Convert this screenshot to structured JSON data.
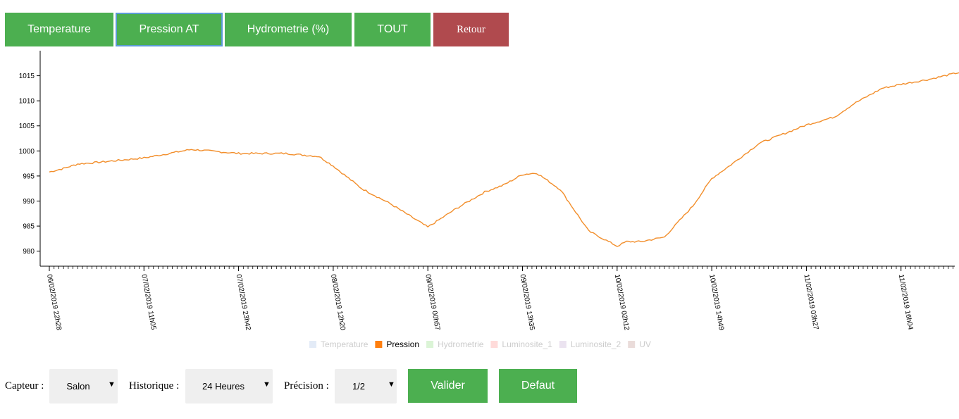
{
  "tabs": [
    {
      "label": "Temperature",
      "active": false
    },
    {
      "label": "Pression AT",
      "active": true
    },
    {
      "label": "Hydrometrie (%)",
      "active": false
    },
    {
      "label": "TOUT",
      "active": false
    },
    {
      "label": "Retour",
      "active": false
    }
  ],
  "controls": {
    "capteur_label": "Capteur :",
    "capteur_value": "Salon",
    "historique_label": "Historique :",
    "historique_value": "24 Heures",
    "precision_label": "Précision :",
    "precision_value": "1/2",
    "valider_label": "Valider",
    "defaut_label": "Defaut"
  },
  "colors": {
    "tab_green": "#4caf50",
    "tab_red": "#b04a4e",
    "active_border": "#5b9bd5",
    "series_line": "#f28e2b"
  },
  "chart_data": {
    "type": "line",
    "ylim": [
      977,
      1020
    ],
    "yticks": [
      980,
      985,
      990,
      995,
      1000,
      1005,
      1010,
      1015
    ],
    "xtick_labels": [
      "06/02/2019 22h28",
      "07/02/2019 11h05",
      "07/02/2019 23h42",
      "08/02/2019 12h20",
      "09/02/2019 00h57",
      "09/02/2019 13h35",
      "10/02/2019 02h12",
      "10/02/2019 14h49",
      "11/02/2019 03h27",
      "11/02/2019 16h04"
    ],
    "grid": false,
    "legend_position": "bottom",
    "legend": [
      {
        "name": "Temperature",
        "color": "#aec7e8",
        "active": false
      },
      {
        "name": "Pression",
        "color": "#ff7f0e",
        "active": true
      },
      {
        "name": "Hydrometrie",
        "color": "#98df8a",
        "active": false
      },
      {
        "name": "Luminosite_1",
        "color": "#ff9896",
        "active": false
      },
      {
        "name": "Luminosite_2",
        "color": "#c5b0d5",
        "active": false
      },
      {
        "name": "UV",
        "color": "#c49c94",
        "active": false
      }
    ],
    "series": [
      {
        "name": "Pression",
        "x_index": [
          0,
          0.15,
          0.3,
          0.5,
          1.0,
          1.5,
          2.0,
          2.5,
          2.85,
          3.0,
          3.3,
          3.6,
          4.0,
          4.3,
          4.6,
          4.8,
          5.0,
          5.15,
          5.4,
          5.7,
          6.0,
          6.1,
          6.25,
          6.5,
          6.8,
          7.0,
          7.2,
          7.5,
          7.8,
          8.0,
          8.3,
          8.5,
          8.8,
          9.0,
          9.3,
          9.6,
          9.8,
          10.0
        ],
        "values": [
          995.8,
          996.5,
          997.4,
          997.7,
          998.6,
          1000.3,
          999.5,
          999.5,
          998.9,
          997.0,
          992.5,
          989.5,
          984.8,
          988.5,
          991.8,
          993.2,
          995.3,
          995.6,
          992.3,
          984.0,
          981.0,
          981.9,
          981.9,
          982.8,
          989.0,
          994.5,
          997.2,
          1001.5,
          1003.7,
          1005.2,
          1006.8,
          1009.4,
          1012.5,
          1013.3,
          1014.3,
          1015.6,
          1016.3,
          1016.5
        ]
      }
    ]
  }
}
